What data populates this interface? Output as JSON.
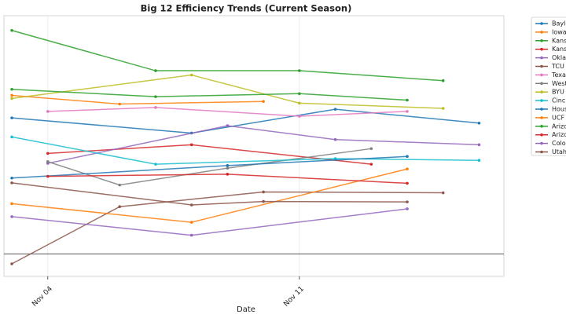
{
  "chart_data": {
    "type": "line",
    "title": "Big 12 Efficiency Trends (Current Season)",
    "x_label": "Date",
    "xlim": [
      2.78,
      16.69
    ],
    "ylim": [
      -0.52,
      5.5
    ],
    "hline": 0,
    "grid": true,
    "xticks": [
      {
        "value": 4,
        "label": "Nov 04"
      },
      {
        "value": 11,
        "label": "Nov 11"
      }
    ],
    "series": [
      {
        "name": "Baylo",
        "color": "#1f77b4",
        "x": [
          3,
          8,
          12,
          16
        ],
        "values": [
          3.14,
          2.79,
          3.34,
          3.02
        ]
      },
      {
        "name": "Iowa",
        "color": "#ff7f0e",
        "x": [
          3,
          6,
          10
        ],
        "values": [
          3.66,
          3.46,
          3.52
        ]
      },
      {
        "name": "Kansa",
        "color": "#2ca02c",
        "x": [
          3,
          7,
          11,
          15
        ],
        "values": [
          5.16,
          4.23,
          4.23,
          4.0
        ]
      },
      {
        "name": "Kansa",
        "color": "#d62728",
        "x": [
          4,
          8,
          13
        ],
        "values": [
          2.32,
          2.52,
          2.07
        ]
      },
      {
        "name": "Oklah",
        "color": "#9467bd",
        "x": [
          4,
          9,
          12,
          16
        ],
        "values": [
          2.09,
          2.96,
          2.64,
          2.52
        ]
      },
      {
        "name": "TCU",
        "color": "#8c564b",
        "x": [
          3,
          6,
          10,
          15
        ],
        "values": [
          -0.23,
          1.09,
          1.43,
          1.41
        ]
      },
      {
        "name": "Texas",
        "color": "#e377c2",
        "x": [
          4,
          7,
          11,
          14
        ],
        "values": [
          3.29,
          3.38,
          3.18,
          3.29
        ]
      },
      {
        "name": "West",
        "color": "#7f7f7f",
        "x": [
          4,
          6,
          9,
          13
        ],
        "values": [
          2.13,
          1.59,
          1.98,
          2.43
        ]
      },
      {
        "name": "BYU",
        "color": "#bcbd22",
        "x": [
          3,
          8,
          11,
          15
        ],
        "values": [
          3.59,
          4.13,
          3.48,
          3.36
        ]
      },
      {
        "name": "Cinci",
        "color": "#17becf",
        "x": [
          3,
          7,
          12,
          16
        ],
        "values": [
          2.7,
          2.07,
          2.2,
          2.16
        ]
      },
      {
        "name": "Hous",
        "color": "#1f77b4",
        "x": [
          3,
          9,
          14
        ],
        "values": [
          1.75,
          2.04,
          2.25
        ]
      },
      {
        "name": "UCF",
        "color": "#ff7f0e",
        "x": [
          3,
          8,
          14
        ],
        "values": [
          1.16,
          0.73,
          1.96
        ]
      },
      {
        "name": "Arizo",
        "color": "#2ca02c",
        "x": [
          3,
          7,
          11,
          14
        ],
        "values": [
          3.8,
          3.63,
          3.7,
          3.55
        ]
      },
      {
        "name": "Arizo",
        "color": "#d62728",
        "x": [
          4,
          9,
          14
        ],
        "values": [
          1.79,
          1.84,
          1.63
        ]
      },
      {
        "name": "Color",
        "color": "#9467bd",
        "x": [
          3,
          8,
          14
        ],
        "values": [
          0.86,
          0.43,
          1.04
        ]
      },
      {
        "name": "Utah",
        "color": "#8c564b",
        "x": [
          3,
          8,
          10,
          14
        ],
        "values": [
          1.64,
          1.13,
          1.21,
          1.2
        ]
      }
    ]
  }
}
